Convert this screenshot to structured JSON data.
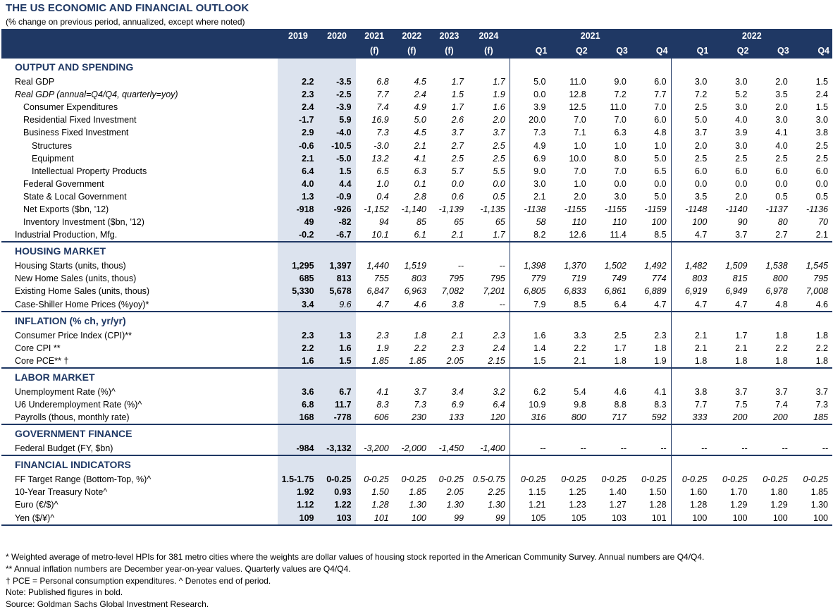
{
  "title": "THE US ECONOMIC AND FINANCIAL OUTLOOK",
  "subtitle": "(% change on previous period, annualized, except where noted)",
  "header": {
    "annual": [
      "2019",
      "2020",
      "2021",
      "2022",
      "2023",
      "2024"
    ],
    "annual_sub": [
      "",
      "",
      "(f)",
      "(f)",
      "(f)",
      "(f)"
    ],
    "year_2021": "2021",
    "year_2022": "2022",
    "quarters": [
      "Q1",
      "Q2",
      "Q3",
      "Q4",
      "Q1",
      "Q2",
      "Q3",
      "Q4"
    ]
  },
  "sections": [
    {
      "title": "OUTPUT AND SPENDING",
      "rows": [
        {
          "label": "Real GDP",
          "indent": 0,
          "vals": [
            "2.2",
            "-3.5",
            "6.8",
            "4.5",
            "1.7",
            "1.7",
            "5.0",
            "11.0",
            "9.0",
            "6.0",
            "3.0",
            "3.0",
            "2.0",
            "1.5"
          ]
        },
        {
          "label": "Real GDP (annual=Q4/Q4, quarterly=yoy)",
          "indent": 0,
          "italic": true,
          "vals": [
            "2.3",
            "-2.5",
            "7.7",
            "2.4",
            "1.5",
            "1.9",
            "0.0",
            "12.8",
            "7.2",
            "7.7",
            "7.2",
            "5.2",
            "3.5",
            "2.4"
          ]
        },
        {
          "label": "Consumer Expenditures",
          "indent": 1,
          "vals": [
            "2.4",
            "-3.9",
            "7.4",
            "4.9",
            "1.7",
            "1.6",
            "3.9",
            "12.5",
            "11.0",
            "7.0",
            "2.5",
            "3.0",
            "2.0",
            "1.5"
          ]
        },
        {
          "label": "Residential Fixed Investment",
          "indent": 1,
          "vals": [
            "-1.7",
            "5.9",
            "16.9",
            "5.0",
            "2.6",
            "2.0",
            "20.0",
            "7.0",
            "7.0",
            "6.0",
            "5.0",
            "4.0",
            "3.0",
            "3.0"
          ]
        },
        {
          "label": "Business Fixed Investment",
          "indent": 1,
          "vals": [
            "2.9",
            "-4.0",
            "7.3",
            "4.5",
            "3.7",
            "3.7",
            "7.3",
            "7.1",
            "6.3",
            "4.8",
            "3.7",
            "3.9",
            "4.1",
            "3.8"
          ]
        },
        {
          "label": "Structures",
          "indent": 2,
          "vals": [
            "-0.6",
            "-10.5",
            "-3.0",
            "2.1",
            "2.7",
            "2.5",
            "4.9",
            "1.0",
            "1.0",
            "1.0",
            "2.0",
            "3.0",
            "4.0",
            "2.5"
          ]
        },
        {
          "label": "Equipment",
          "indent": 2,
          "vals": [
            "2.1",
            "-5.0",
            "13.2",
            "4.1",
            "2.5",
            "2.5",
            "6.9",
            "10.0",
            "8.0",
            "5.0",
            "2.5",
            "2.5",
            "2.5",
            "2.5"
          ]
        },
        {
          "label": "Intellectual Property Products",
          "indent": 2,
          "vals": [
            "6.4",
            "1.5",
            "6.5",
            "6.3",
            "5.7",
            "5.5",
            "9.0",
            "7.0",
            "7.0",
            "6.5",
            "6.0",
            "6.0",
            "6.0",
            "6.0"
          ]
        },
        {
          "label": "Federal Government",
          "indent": 1,
          "vals": [
            "4.0",
            "4.4",
            "1.0",
            "0.1",
            "0.0",
            "0.0",
            "3.0",
            "1.0",
            "0.0",
            "0.0",
            "0.0",
            "0.0",
            "0.0",
            "0.0"
          ]
        },
        {
          "label": "State & Local Government",
          "indent": 1,
          "vals": [
            "1.3",
            "-0.9",
            "0.4",
            "2.8",
            "0.6",
            "0.5",
            "2.1",
            "2.0",
            "3.0",
            "5.0",
            "3.5",
            "2.0",
            "0.5",
            "0.5"
          ]
        },
        {
          "label": "Net Exports ($bn, '12)",
          "indent": 1,
          "vals": [
            "-918",
            "-926",
            "-1,152",
            "-1,140",
            "-1,139",
            "-1,135",
            "-1138",
            "-1155",
            "-1155",
            "-1159",
            "-1148",
            "-1140",
            "-1137",
            "-1136"
          ],
          "qitalic": true
        },
        {
          "label": "Inventory Investment ($bn, '12)",
          "indent": 1,
          "vals": [
            "49",
            "-82",
            "94",
            "85",
            "65",
            "65",
            "58",
            "110",
            "110",
            "100",
            "100",
            "90",
            "80",
            "70"
          ],
          "qitalic": true
        },
        {
          "label": "Industrial Production, Mfg.",
          "indent": 0,
          "vals": [
            "-0.2",
            "-6.7",
            "10.1",
            "6.1",
            "2.1",
            "1.7",
            "8.2",
            "12.6",
            "11.4",
            "8.5",
            "4.7",
            "3.7",
            "2.7",
            "2.1"
          ]
        }
      ]
    },
    {
      "title": "HOUSING MARKET",
      "rows": [
        {
          "label": "Housing Starts (units, thous)",
          "indent": 0,
          "vals": [
            "1,295",
            "1,397",
            "1,440",
            "1,519",
            "--",
            "--",
            "1,398",
            "1,370",
            "1,502",
            "1,492",
            "1,482",
            "1,509",
            "1,538",
            "1,545"
          ],
          "qitalic": true
        },
        {
          "label": "New Home Sales (units, thous)",
          "indent": 0,
          "vals": [
            "685",
            "813",
            "755",
            "803",
            "795",
            "795",
            "779",
            "719",
            "749",
            "774",
            "803",
            "815",
            "800",
            "795"
          ],
          "qitalic": true
        },
        {
          "label": "Existing Home Sales (units, thous)",
          "indent": 0,
          "vals": [
            "5,330",
            "5,678",
            "6,847",
            "6,963",
            "7,082",
            "7,201",
            "6,805",
            "6,833",
            "6,861",
            "6,889",
            "6,919",
            "6,949",
            "6,978",
            "7,008"
          ],
          "qitalic": true
        },
        {
          "label": "Case-Shiller Home Prices (%yoy)*",
          "indent": 0,
          "vals": [
            "3.4",
            "9.6",
            "4.7",
            "4.6",
            "3.8",
            "--",
            "7.9",
            "8.5",
            "6.4",
            "4.7",
            "4.7",
            "4.7",
            "4.8",
            "4.6"
          ],
          "a2normal": true
        }
      ]
    },
    {
      "title": "INFLATION (% ch, yr/yr)",
      "rows": [
        {
          "label": "Consumer Price Index (CPI)**",
          "indent": 0,
          "vals": [
            "2.3",
            "1.3",
            "2.3",
            "1.8",
            "2.1",
            "2.3",
            "1.6",
            "3.3",
            "2.5",
            "2.3",
            "2.1",
            "1.7",
            "1.8",
            "1.8"
          ]
        },
        {
          "label": "Core CPI **",
          "indent": 0,
          "vals": [
            "2.2",
            "1.6",
            "1.9",
            "2.2",
            "2.3",
            "2.4",
            "1.4",
            "2.2",
            "1.7",
            "1.8",
            "2.1",
            "2.1",
            "2.2",
            "2.2"
          ]
        },
        {
          "label": "Core PCE** †",
          "indent": 0,
          "vals": [
            "1.6",
            "1.5",
            "1.85",
            "1.85",
            "2.05",
            "2.15",
            "1.5",
            "2.1",
            "1.8",
            "1.9",
            "1.8",
            "1.8",
            "1.8",
            "1.8"
          ]
        }
      ]
    },
    {
      "title": "LABOR MARKET",
      "rows": [
        {
          "label": "Unemployment Rate (%)^",
          "indent": 0,
          "vals": [
            "3.6",
            "6.7",
            "4.1",
            "3.7",
            "3.4",
            "3.2",
            "6.2",
            "5.4",
            "4.6",
            "4.1",
            "3.8",
            "3.7",
            "3.7",
            "3.7"
          ]
        },
        {
          "label": "U6 Underemployment Rate (%)^",
          "indent": 0,
          "vals": [
            "6.8",
            "11.7",
            "8.3",
            "7.3",
            "6.9",
            "6.4",
            "10.9",
            "9.8",
            "8.8",
            "8.3",
            "7.7",
            "7.5",
            "7.4",
            "7.3"
          ]
        },
        {
          "label": "Payrolls (thous, monthly rate)",
          "indent": 0,
          "vals": [
            "168",
            "-778",
            "606",
            "230",
            "133",
            "120",
            "316",
            "800",
            "717",
            "592",
            "333",
            "200",
            "200",
            "185"
          ],
          "qitalic": true
        }
      ]
    },
    {
      "title": "GOVERNMENT FINANCE",
      "rows": [
        {
          "label": "Federal Budget (FY, $bn)",
          "indent": 0,
          "vals": [
            "-984",
            "-3,132",
            "-3,200",
            "-2,000",
            "-1,450",
            "-1,400",
            "--",
            "--",
            "--",
            "--",
            "--",
            "--",
            "--",
            "--"
          ],
          "qitalic": true
        }
      ]
    },
    {
      "title": "FINANCIAL INDICATORS",
      "rows": [
        {
          "label": "FF Target Range (Bottom-Top, %)^",
          "indent": 0,
          "vals": [
            "1.5-1.75",
            "0-0.25",
            "0-0.25",
            "0-0.25",
            "0-0.25",
            "0.5-0.75",
            "0-0.25",
            "0-0.25",
            "0-0.25",
            "0-0.25",
            "0-0.25",
            "0-0.25",
            "0-0.25",
            "0-0.25"
          ],
          "qitalic": true
        },
        {
          "label": "10-Year Treasury Note^",
          "indent": 0,
          "vals": [
            "1.92",
            "0.93",
            "1.50",
            "1.85",
            "2.05",
            "2.25",
            "1.15",
            "1.25",
            "1.40",
            "1.50",
            "1.60",
            "1.70",
            "1.80",
            "1.85"
          ]
        },
        {
          "label": "Euro (€/$)^",
          "indent": 0,
          "vals": [
            "1.12",
            "1.22",
            "1.28",
            "1.30",
            "1.30",
            "1.30",
            "1.21",
            "1.23",
            "1.27",
            "1.28",
            "1.28",
            "1.29",
            "1.29",
            "1.30"
          ]
        },
        {
          "label": "Yen ($/¥)^",
          "indent": 0,
          "vals": [
            "109",
            "103",
            "101",
            "100",
            "99",
            "99",
            "105",
            "105",
            "103",
            "101",
            "100",
            "100",
            "100",
            "100"
          ]
        }
      ]
    }
  ],
  "notes": [
    "* Weighted average of metro-level HPIs for 381 metro cities where the weights are dollar values of housing stock reported in the American Community Survey. Annual numbers are Q4/Q4.",
    "** Annual inflation numbers are December year-on-year values. Quarterly values are Q4/Q4.",
    "† PCE = Personal consumption expenditures.  ^ Denotes end of period.",
    "Note: Published figures in bold.",
    "Source: Goldman Sachs Global Investment Research."
  ],
  "colors": {
    "navy": "#1f3864",
    "shade": "#dce3ee"
  }
}
